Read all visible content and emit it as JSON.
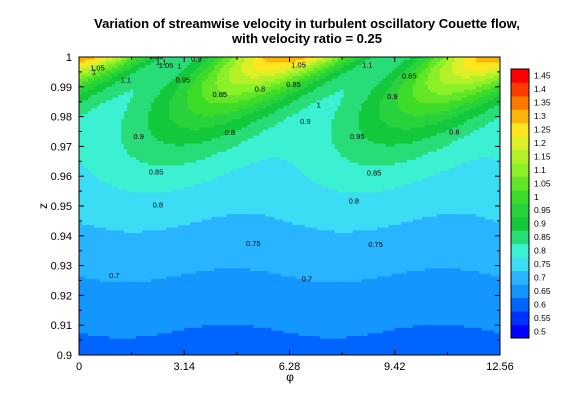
{
  "chart_data": {
    "type": "heatmap",
    "title": [
      "Variation of streamwise velocity in turbulent oscillatory Couette flow,",
      "with velocity ratio = 0.25"
    ],
    "xlabel": "φ",
    "ylabel": "z",
    "xlim": [
      0,
      12.56
    ],
    "ylim": [
      0.9,
      1.0
    ],
    "x_ticks": [
      "0",
      "3.14",
      "6.28",
      "9.42",
      "12.56"
    ],
    "y_ticks": [
      "0.9",
      "0.91",
      "0.92",
      "0.93",
      "0.94",
      "0.95",
      "0.96",
      "0.97",
      "0.98",
      "0.99",
      "1"
    ],
    "colorbar": {
      "levels": [
        0.5,
        0.55,
        0.6,
        0.65,
        0.7,
        0.75,
        0.8,
        0.85,
        0.9,
        0.95,
        1,
        1.05,
        1.1,
        1.15,
        1.2,
        1.25,
        1.3,
        1.35,
        1.4,
        1.45
      ],
      "labels": [
        "0.5",
        "0.55",
        "0.6",
        "0.65",
        "0.7",
        "0.75",
        "0.8",
        "0.85",
        "0.9",
        "0.95",
        "1",
        "1.05",
        "1.1",
        "1.15",
        "1.2",
        "1.25",
        "1.3",
        "1.35",
        "1.4",
        "1.45"
      ],
      "colors": [
        "#0000ff",
        "#0032ff",
        "#0064ff",
        "#1496ff",
        "#28b4ff",
        "#3cdcf5",
        "#3cf0d2",
        "#28dc78",
        "#14c83c",
        "#28d23c",
        "#3cdc28",
        "#64e628",
        "#8cf028",
        "#b4f028",
        "#dcf028",
        "#ffe61e",
        "#ffb40a",
        "#ff7800",
        "#ff3c00",
        "#ff0000"
      ]
    },
    "contour_labels": [
      {
        "text": "1.1",
        "x": 1.4,
        "z": 0.9915
      },
      {
        "text": "1.05",
        "x": 0.55,
        "z": 0.9955
      },
      {
        "text": "1",
        "x": 0.45,
        "z": 0.9942
      },
      {
        "text": "1.05",
        "x": 2.3,
        "z": 0.9994
      },
      {
        "text": "1.1",
        "x": 2.45,
        "z": 0.9975
      },
      {
        "text": "1.05",
        "x": 2.6,
        "z": 0.9963
      },
      {
        "text": "1",
        "x": 3.0,
        "z": 0.9962
      },
      {
        "text": "0.95",
        "x": 3.1,
        "z": 0.9915
      },
      {
        "text": "0.9",
        "x": 1.78,
        "z": 0.9725
      },
      {
        "text": "0.9",
        "x": 3.5,
        "z": 0.9985
      },
      {
        "text": "0.85",
        "x": 4.2,
        "z": 0.9865
      },
      {
        "text": "0.8",
        "x": 5.4,
        "z": 0.9885
      },
      {
        "text": "0.8",
        "x": 4.5,
        "z": 0.9738
      },
      {
        "text": "0.85",
        "x": 2.3,
        "z": 0.9605
      },
      {
        "text": "0.8",
        "x": 2.35,
        "z": 0.9495
      },
      {
        "text": "0.75",
        "x": 5.2,
        "z": 0.9365
      },
      {
        "text": "0.7",
        "x": 1.05,
        "z": 0.9259
      },
      {
        "text": "0.7",
        "x": 6.8,
        "z": 0.9247
      },
      {
        "text": "1.05",
        "x": 6.55,
        "z": 0.9965
      },
      {
        "text": "1.1",
        "x": 8.6,
        "z": 0.9964
      },
      {
        "text": "0.85",
        "x": 6.4,
        "z": 0.99
      },
      {
        "text": "1",
        "x": 7.15,
        "z": 0.983
      },
      {
        "text": "0.9",
        "x": 6.75,
        "z": 0.9775
      },
      {
        "text": "0.95",
        "x": 8.3,
        "z": 0.9725
      },
      {
        "text": "0.85",
        "x": 9.85,
        "z": 0.9928
      },
      {
        "text": "0.9",
        "x": 9.35,
        "z": 0.9859
      },
      {
        "text": "0.85",
        "x": 8.8,
        "z": 0.9602
      },
      {
        "text": "0.8",
        "x": 8.2,
        "z": 0.9508
      },
      {
        "text": "0.75",
        "x": 8.85,
        "z": 0.9362
      },
      {
        "text": "0.8",
        "x": 11.2,
        "z": 0.974
      }
    ]
  }
}
